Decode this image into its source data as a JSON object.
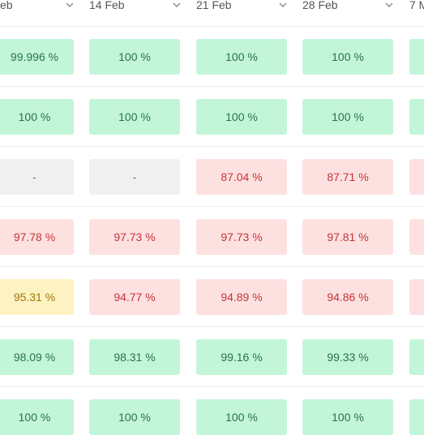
{
  "columns": [
    {
      "label": "eb"
    },
    {
      "label": "14 Feb"
    },
    {
      "label": "21 Feb"
    },
    {
      "label": "28 Feb"
    },
    {
      "label": "7 M"
    }
  ],
  "rows": [
    [
      {
        "value": "99.996 %",
        "status": "green"
      },
      {
        "value": "100 %",
        "status": "green"
      },
      {
        "value": "100 %",
        "status": "green"
      },
      {
        "value": "100 %",
        "status": "green"
      },
      {
        "value": "",
        "status": "green"
      }
    ],
    [
      {
        "value": "100 %",
        "status": "green"
      },
      {
        "value": "100 %",
        "status": "green"
      },
      {
        "value": "100 %",
        "status": "green"
      },
      {
        "value": "100 %",
        "status": "green"
      },
      {
        "value": "",
        "status": "green"
      }
    ],
    [
      {
        "value": "-",
        "status": "gray"
      },
      {
        "value": "-",
        "status": "gray"
      },
      {
        "value": "87.04 %",
        "status": "red"
      },
      {
        "value": "87.71 %",
        "status": "red"
      },
      {
        "value": "",
        "status": "red"
      }
    ],
    [
      {
        "value": "97.78 %",
        "status": "red"
      },
      {
        "value": "97.73 %",
        "status": "red"
      },
      {
        "value": "97.73 %",
        "status": "red"
      },
      {
        "value": "97.81 %",
        "status": "red"
      },
      {
        "value": "",
        "status": "red"
      }
    ],
    [
      {
        "value": "95.31 %",
        "status": "yellow"
      },
      {
        "value": "94.77 %",
        "status": "red"
      },
      {
        "value": "94.89 %",
        "status": "red"
      },
      {
        "value": "94.86 %",
        "status": "red"
      },
      {
        "value": "",
        "status": "red"
      }
    ],
    [
      {
        "value": "98.09 %",
        "status": "green"
      },
      {
        "value": "98.31 %",
        "status": "green"
      },
      {
        "value": "99.16 %",
        "status": "green"
      },
      {
        "value": "99.33 %",
        "status": "green"
      },
      {
        "value": "",
        "status": "green"
      }
    ],
    [
      {
        "value": "100 %",
        "status": "green"
      },
      {
        "value": "100 %",
        "status": "green"
      },
      {
        "value": "100 %",
        "status": "green"
      },
      {
        "value": "100 %",
        "status": "green"
      },
      {
        "value": "",
        "status": "green"
      }
    ]
  ],
  "icons": {
    "sort": "chevron-down-icon"
  },
  "colors": {
    "green_bg": "#c3f5d9",
    "green_text": "#27734c",
    "red_bg": "#fde1e1",
    "red_text": "#c53434",
    "yellow_bg": "#fdf2c2",
    "yellow_text": "#a2760c",
    "gray_bg": "#f0f0f0",
    "gray_text": "#777777"
  }
}
